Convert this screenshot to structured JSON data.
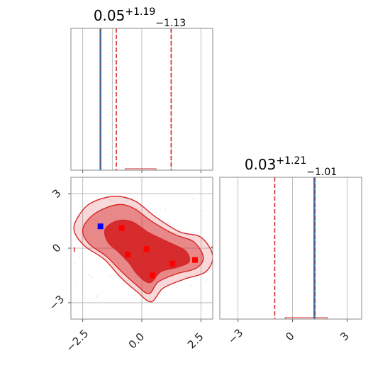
{
  "chart_data": {
    "type": "corner",
    "colors": {
      "samples": "#d62728",
      "truth": "#1f77b4",
      "truth_marker": "#0000ff",
      "highlight": "#ff0000",
      "grid": "#b0b0b0"
    },
    "panels": {
      "param1_hist": {
        "type": "histogram",
        "title_value": "0.05",
        "title_plus": "+1.19",
        "title_minus": "−1.13",
        "xlim": [
          -3.0,
          3.0
        ],
        "quantiles": [
          -1.08,
          0.05,
          1.24
        ],
        "dashed_lines": [
          -1.08,
          1.24
        ],
        "truth": -1.75,
        "grid": true
      },
      "param2_hist": {
        "type": "histogram",
        "title_value": "0.03",
        "title_plus": "+1.21",
        "title_minus": "−1.01",
        "xlim": [
          -4.0,
          3.8
        ],
        "quantiles": [
          -0.98,
          0.03,
          1.24
        ],
        "dashed_lines": [
          -0.98
        ],
        "truth": 1.2,
        "grid": true
      },
      "joint": {
        "type": "contour",
        "xlim": [
          -3.0,
          3.0
        ],
        "ylim": [
          -3.9,
          3.9
        ],
        "xticks": [
          "−2.5",
          "0.0",
          "2.5"
        ],
        "yticks": [
          "3",
          "0",
          "−3"
        ],
        "truth_point": [
          -1.75,
          1.2
        ],
        "highlight_points": [
          [
            -0.85,
            1.1
          ],
          [
            -0.6,
            -0.35
          ],
          [
            0.2,
            -0.05
          ],
          [
            1.3,
            -0.85
          ],
          [
            2.25,
            -0.65
          ],
          [
            0.45,
            -1.5
          ]
        ],
        "grid": true
      },
      "param2_xticks": [
        "−3",
        "0",
        "3"
      ]
    }
  }
}
